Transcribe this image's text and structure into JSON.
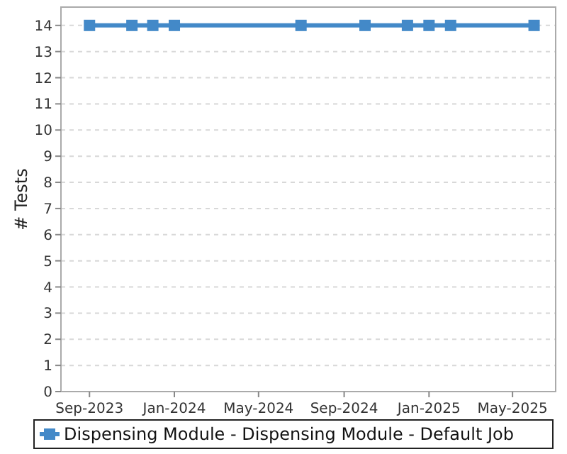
{
  "chart_data": {
    "type": "line",
    "ylabel": "# Tests",
    "x": [
      "2023-09-01",
      "2023-11-01",
      "2023-12-01",
      "2024-01-01",
      "2024-07-01",
      "2024-10-01",
      "2024-12-01",
      "2025-01-01",
      "2025-02-01",
      "2025-06-01"
    ],
    "series": [
      {
        "name": "Dispensing Module - Dispensing Module - Default Job",
        "color": "#4389c8",
        "values": [
          14,
          14,
          14,
          14,
          14,
          14,
          14,
          14,
          14,
          14
        ]
      }
    ],
    "xlim": [
      "2023-07-22",
      "2025-07-02"
    ],
    "xticks": [
      {
        "value": "2023-09-01",
        "label": "Sep-2023"
      },
      {
        "value": "2024-01-01",
        "label": "Jan-2024"
      },
      {
        "value": "2024-05-01",
        "label": "May-2024"
      },
      {
        "value": "2024-09-01",
        "label": "Sep-2024"
      },
      {
        "value": "2025-01-01",
        "label": "Jan-2025"
      },
      {
        "value": "2025-05-01",
        "label": "May-2025"
      }
    ],
    "ylim": [
      0,
      14.7
    ],
    "yticks": [
      0,
      1,
      2,
      3,
      4,
      5,
      6,
      7,
      8,
      9,
      10,
      11,
      12,
      13,
      14
    ],
    "grid": "y",
    "legend": "bottom",
    "marker": "square",
    "line_style": "solid"
  }
}
